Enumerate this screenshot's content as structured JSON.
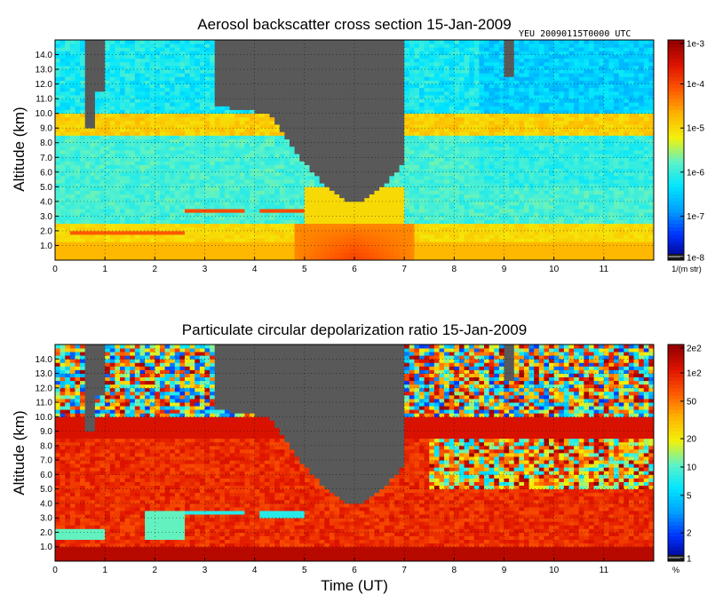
{
  "chart_data": [
    {
      "type": "heatmap",
      "title": "Aerosol backscatter cross section  15-Jan-2009",
      "stamp": "YEU   20090115T0000  UTC",
      "ylabel": "Altitude (km)",
      "xlabel": "",
      "xlim": [
        0,
        12
      ],
      "ylim": [
        0,
        15
      ],
      "xticks": [
        "0",
        "1",
        "2",
        "3",
        "4",
        "5",
        "6",
        "7",
        "8",
        "9",
        "10",
        "11"
      ],
      "yticks": [
        "1.0",
        "2.0",
        "3.0",
        "4.0",
        "5.0",
        "6.0",
        "7.0",
        "8.0",
        "9.0",
        "10.0",
        "11.0",
        "12.0",
        "13.0",
        "14.0"
      ],
      "colorbar": {
        "scale": "log",
        "range": [
          1e-08,
          0.001
        ],
        "tick_labels": [
          "1e-3",
          "1e-4",
          "1e-5",
          "1e-6",
          "1e-7",
          "1e-8"
        ],
        "unit": "1/(m str)"
      },
      "features": {
        "no_data_region": "above cloud / signal extinction, ~3.2-7.0 UT reaching down to ~4 km near 6 UT",
        "cloud_layer_km": [
          8.5,
          10.0
        ],
        "elevated_layers_km": [
          2.0,
          3.5
        ],
        "boundary_layer_max": "1e-4 near surface around 5-7 UT"
      }
    },
    {
      "type": "heatmap",
      "title": "Particulate circular depolarization ratio  15-Jan-2009",
      "ylabel": "Altitude (km)",
      "xlabel": "Time (UT)",
      "xlim": [
        0,
        12
      ],
      "ylim": [
        0,
        15
      ],
      "xticks": [
        "0",
        "1",
        "2",
        "3",
        "4",
        "5",
        "6",
        "7",
        "8",
        "9",
        "10",
        "11"
      ],
      "yticks": [
        "1.0",
        "2.0",
        "3.0",
        "4.0",
        "5.0",
        "6.0",
        "7.0",
        "8.0",
        "9.0",
        "10.0",
        "11.0",
        "12.0",
        "13.0",
        "14.0"
      ],
      "colorbar": {
        "scale": "log",
        "range": [
          1,
          200
        ],
        "tick_labels": [
          "2e2",
          "1e2",
          "50",
          "20",
          "10",
          "5",
          "2",
          "1"
        ],
        "unit": "%"
      },
      "features": {
        "high_depol_cloud_layer_km": [
          8.5,
          10.0
        ],
        "low_depol_layers_km": [
          1.5,
          3.5
        ],
        "typical_value_percent": 100
      }
    }
  ],
  "colors": {
    "no_data": "#595959",
    "palette": [
      "#1a1a1a",
      "#00008c",
      "#0033ff",
      "#00a0ff",
      "#00e5ff",
      "#5cf2c8",
      "#f2f20a",
      "#ffb400",
      "#ff5a00",
      "#e01400",
      "#960000"
    ]
  }
}
